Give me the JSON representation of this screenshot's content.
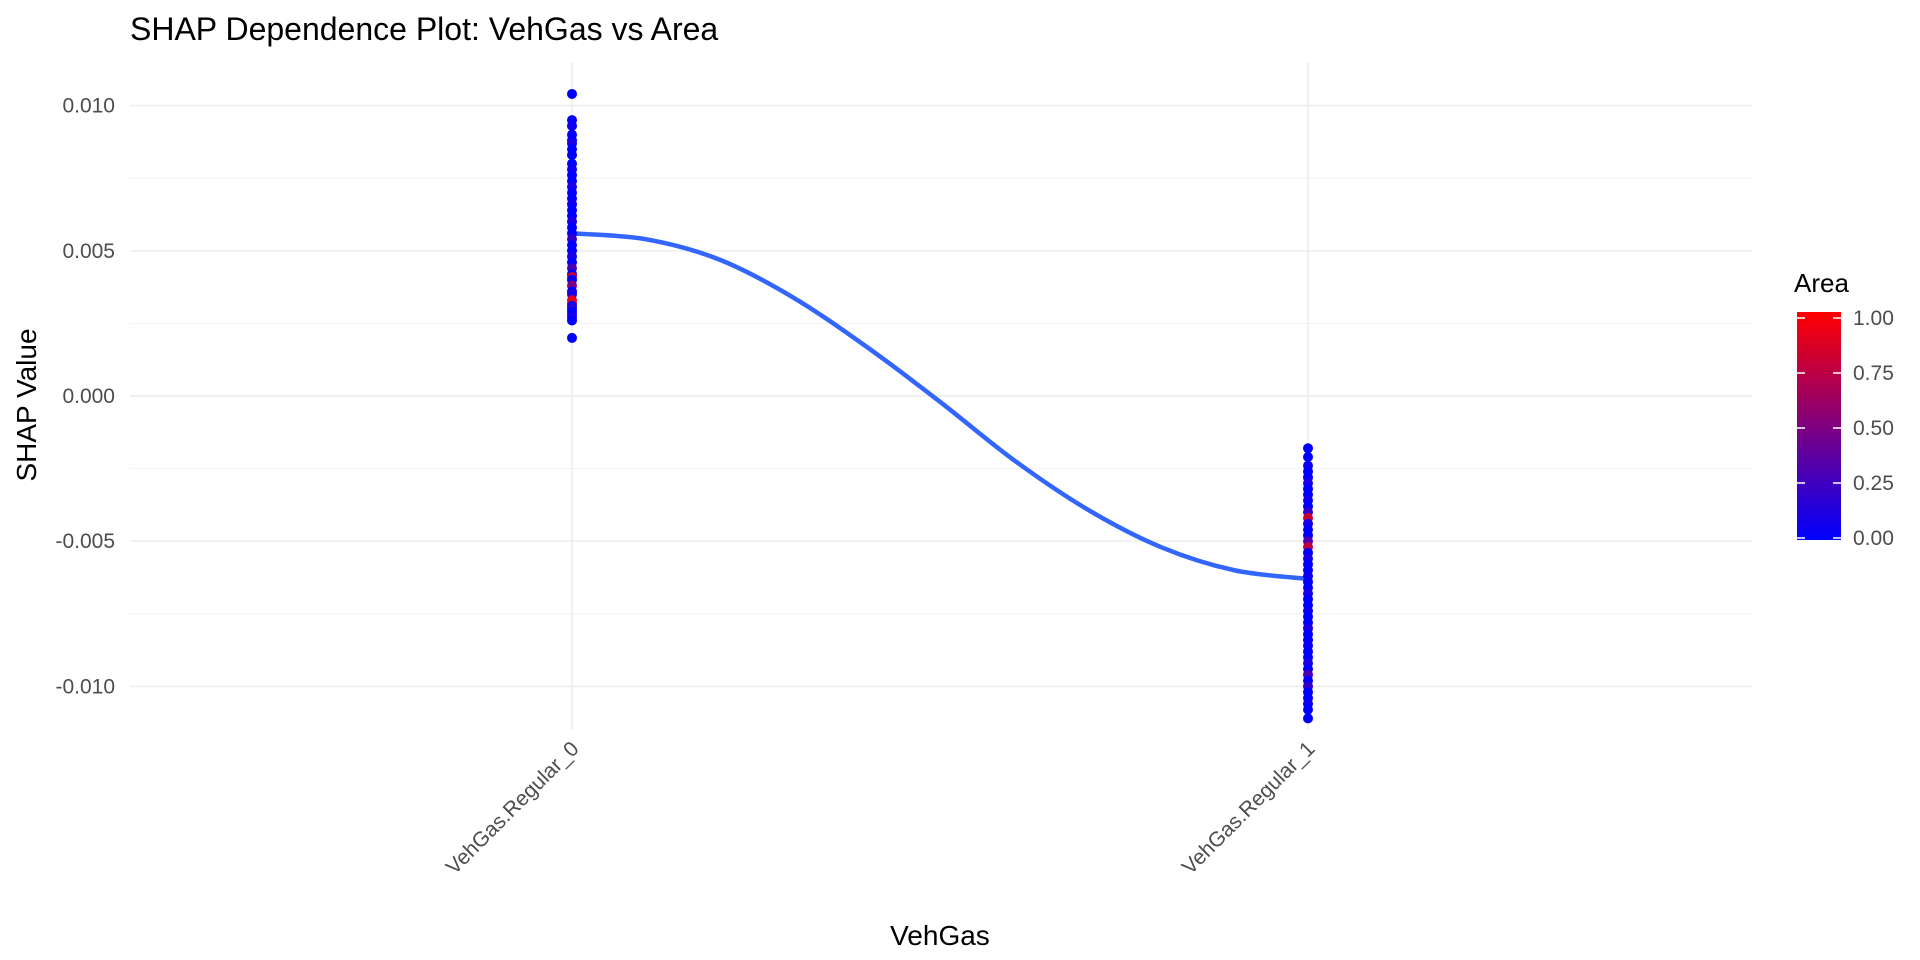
{
  "chart_data": {
    "type": "scatter",
    "title": "SHAP Dependence Plot: VehGas vs Area",
    "xlabel": "VehGas",
    "ylabel": "SHAP Value",
    "categories": [
      "VehGas.Regular_0",
      "VehGas.Regular_1"
    ],
    "ylim": [
      -0.0115,
      0.0115
    ],
    "yticks": [
      0.01,
      0.005,
      0.0,
      -0.005,
      -0.01
    ],
    "ytick_labels": [
      "0.010",
      "0.005",
      "0.000",
      "-0.005",
      "-0.010"
    ],
    "grid": true,
    "legend": {
      "title": "Area",
      "position": "right",
      "ticks": [
        1.0,
        0.75,
        0.5,
        0.25,
        0.0
      ],
      "tick_labels": [
        "1.00",
        "0.75",
        "0.50",
        "0.25",
        "0.00"
      ],
      "low_color": "#0000ff",
      "high_color": "#ff0000"
    },
    "smooth_line": {
      "color": "#3366ff",
      "x": [
        0,
        0.1,
        0.2,
        0.3,
        0.4,
        0.5,
        0.6,
        0.7,
        0.8,
        0.9,
        1.0
      ],
      "y": [
        0.0056,
        0.0054,
        0.0047,
        0.0034,
        0.0017,
        -0.0002,
        -0.0022,
        -0.0039,
        -0.0052,
        -0.006,
        -0.0063
      ]
    },
    "series": [
      {
        "category": "VehGas.Regular_0",
        "points": [
          {
            "y": 0.0104,
            "area": 0.0
          },
          {
            "y": 0.0095,
            "area": 0.0
          },
          {
            "y": 0.0093,
            "area": 0.05
          },
          {
            "y": 0.009,
            "area": 0.0
          },
          {
            "y": 0.0088,
            "area": 0.0
          },
          {
            "y": 0.0087,
            "area": 0.1
          },
          {
            "y": 0.0085,
            "area": 0.0
          },
          {
            "y": 0.0083,
            "area": 0.0
          },
          {
            "y": 0.008,
            "area": 0.0
          },
          {
            "y": 0.0078,
            "area": 0.05
          },
          {
            "y": 0.0076,
            "area": 0.0
          },
          {
            "y": 0.0074,
            "area": 0.0
          },
          {
            "y": 0.0072,
            "area": 0.1
          },
          {
            "y": 0.007,
            "area": 0.0
          },
          {
            "y": 0.0068,
            "area": 0.0
          },
          {
            "y": 0.0066,
            "area": 0.05
          },
          {
            "y": 0.0064,
            "area": 0.0
          },
          {
            "y": 0.0062,
            "area": 0.0
          },
          {
            "y": 0.006,
            "area": 0.1
          },
          {
            "y": 0.0058,
            "area": 0.0
          },
          {
            "y": 0.0056,
            "area": 0.0
          },
          {
            "y": 0.0054,
            "area": 0.2
          },
          {
            "y": 0.0052,
            "area": 0.0
          },
          {
            "y": 0.005,
            "area": 0.0
          },
          {
            "y": 0.0048,
            "area": 0.1
          },
          {
            "y": 0.0046,
            "area": 0.0
          },
          {
            "y": 0.0044,
            "area": 0.3
          },
          {
            "y": 0.0042,
            "area": 0.0
          },
          {
            "y": 0.0041,
            "area": 0.75
          },
          {
            "y": 0.004,
            "area": 0.0
          },
          {
            "y": 0.0038,
            "area": 0.5
          },
          {
            "y": 0.0036,
            "area": 0.0
          },
          {
            "y": 0.0035,
            "area": 0.1
          },
          {
            "y": 0.0033,
            "area": 0.85
          },
          {
            "y": 0.0032,
            "area": 0.9
          },
          {
            "y": 0.0031,
            "area": 0.0
          },
          {
            "y": 0.003,
            "area": 0.2
          },
          {
            "y": 0.0029,
            "area": 0.0
          },
          {
            "y": 0.0028,
            "area": 0.0
          },
          {
            "y": 0.0027,
            "area": 0.1
          },
          {
            "y": 0.0026,
            "area": 0.0
          },
          {
            "y": 0.002,
            "area": 0.0
          }
        ]
      },
      {
        "category": "VehGas.Regular_1",
        "points": [
          {
            "y": -0.0018,
            "area": 0.0
          },
          {
            "y": -0.0021,
            "area": 0.0
          },
          {
            "y": -0.0024,
            "area": 0.05
          },
          {
            "y": -0.0026,
            "area": 0.0
          },
          {
            "y": -0.0028,
            "area": 0.0
          },
          {
            "y": -0.003,
            "area": 0.1
          },
          {
            "y": -0.0032,
            "area": 0.0
          },
          {
            "y": -0.0034,
            "area": 0.0
          },
          {
            "y": -0.0036,
            "area": 0.05
          },
          {
            "y": -0.0038,
            "area": 0.0
          },
          {
            "y": -0.004,
            "area": 0.2
          },
          {
            "y": -0.0042,
            "area": 0.8
          },
          {
            "y": -0.0044,
            "area": 0.1
          },
          {
            "y": -0.0046,
            "area": 0.0
          },
          {
            "y": -0.0048,
            "area": 0.0
          },
          {
            "y": -0.005,
            "area": 0.3
          },
          {
            "y": -0.0052,
            "area": 0.75
          },
          {
            "y": -0.0054,
            "area": 0.0
          },
          {
            "y": -0.0056,
            "area": 0.1
          },
          {
            "y": -0.0058,
            "area": 0.0
          },
          {
            "y": -0.006,
            "area": 0.0
          },
          {
            "y": -0.0062,
            "area": 0.05
          },
          {
            "y": -0.0064,
            "area": 0.0
          },
          {
            "y": -0.0066,
            "area": 0.0
          },
          {
            "y": -0.0068,
            "area": 0.1
          },
          {
            "y": -0.007,
            "area": 0.0
          },
          {
            "y": -0.0072,
            "area": 0.0
          },
          {
            "y": -0.0074,
            "area": 0.05
          },
          {
            "y": -0.0076,
            "area": 0.0
          },
          {
            "y": -0.0078,
            "area": 0.0
          },
          {
            "y": -0.008,
            "area": 0.1
          },
          {
            "y": -0.0082,
            "area": 0.0
          },
          {
            "y": -0.0084,
            "area": 0.0
          },
          {
            "y": -0.0086,
            "area": 0.05
          },
          {
            "y": -0.0088,
            "area": 0.0
          },
          {
            "y": -0.009,
            "area": 0.0
          },
          {
            "y": -0.0092,
            "area": 0.1
          },
          {
            "y": -0.0094,
            "area": 0.0
          },
          {
            "y": -0.0096,
            "area": 0.3
          },
          {
            "y": -0.0098,
            "area": 0.0
          },
          {
            "y": -0.01,
            "area": 0.2
          },
          {
            "y": -0.0102,
            "area": 0.0
          },
          {
            "y": -0.0104,
            "area": 0.0
          },
          {
            "y": -0.0106,
            "area": 0.05
          },
          {
            "y": -0.0108,
            "area": 0.0
          },
          {
            "y": -0.0111,
            "area": 0.0
          }
        ]
      }
    ]
  }
}
